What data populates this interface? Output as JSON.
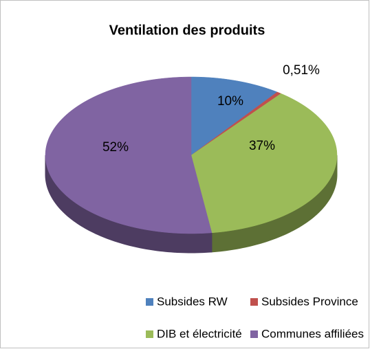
{
  "chart_data": {
    "type": "pie",
    "title": "Ventilation des produits",
    "categories": [
      "Subsides RW",
      "Subsides Province",
      "DIB et électricité",
      "Communes affiliées"
    ],
    "values": [
      10,
      0.51,
      37,
      52
    ],
    "value_labels": [
      "10%",
      "0,51%",
      "37%",
      "52%"
    ],
    "colors": [
      "#4f81bd",
      "#c0504d",
      "#9bbb59",
      "#8064a2"
    ],
    "legend": "bottom"
  }
}
